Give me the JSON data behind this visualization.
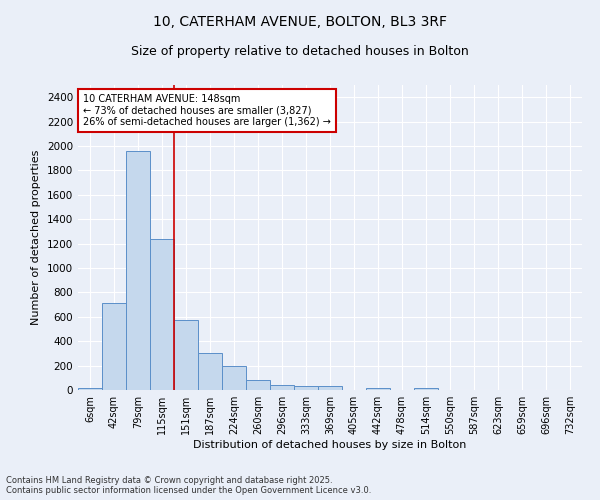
{
  "title_line1": "10, CATERHAM AVENUE, BOLTON, BL3 3RF",
  "title_line2": "Size of property relative to detached houses in Bolton",
  "xlabel": "Distribution of detached houses by size in Bolton",
  "ylabel": "Number of detached properties",
  "bar_color": "#c5d8ed",
  "bar_edge_color": "#5b8fc9",
  "background_color": "#eaeff8",
  "grid_color": "#ffffff",
  "vline_color": "#cc0000",
  "vline_x_index": 4,
  "categories": [
    "6sqm",
    "42sqm",
    "79sqm",
    "115sqm",
    "151sqm",
    "187sqm",
    "224sqm",
    "260sqm",
    "296sqm",
    "333sqm",
    "369sqm",
    "405sqm",
    "442sqm",
    "478sqm",
    "514sqm",
    "550sqm",
    "587sqm",
    "623sqm",
    "659sqm",
    "696sqm",
    "732sqm"
  ],
  "values": [
    20,
    710,
    1960,
    1240,
    570,
    300,
    200,
    80,
    45,
    35,
    35,
    0,
    20,
    0,
    15,
    0,
    0,
    0,
    0,
    0,
    0
  ],
  "ylim": [
    0,
    2500
  ],
  "yticks": [
    0,
    200,
    400,
    600,
    800,
    1000,
    1200,
    1400,
    1600,
    1800,
    2000,
    2200,
    2400
  ],
  "annotation_text": "10 CATERHAM AVENUE: 148sqm\n← 73% of detached houses are smaller (3,827)\n26% of semi-detached houses are larger (1,362) →",
  "annotation_box_color": "#ffffff",
  "annotation_box_edge_color": "#cc0000",
  "footer_line1": "Contains HM Land Registry data © Crown copyright and database right 2025.",
  "footer_line2": "Contains public sector information licensed under the Open Government Licence v3.0.",
  "title_fontsize": 10,
  "subtitle_fontsize": 9,
  "annotation_fontsize": 7,
  "footer_fontsize": 6,
  "ylabel_fontsize": 8,
  "xlabel_fontsize": 8,
  "ytick_fontsize": 7.5,
  "xtick_fontsize": 7
}
